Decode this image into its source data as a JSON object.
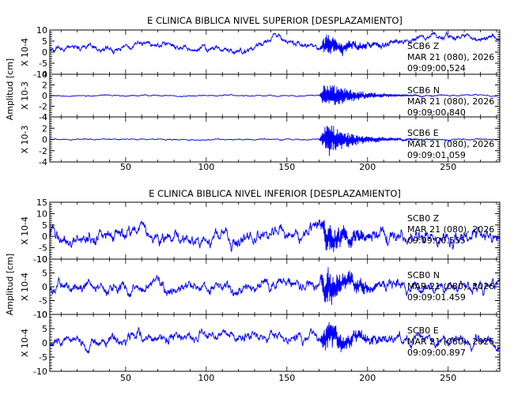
{
  "chart_data": [
    {
      "type": "line",
      "title": "E CLINICA BIBLICA NIVEL SUPERIOR [DESPLAZAMIENTO]",
      "ylabel": "Amplitud [cm]",
      "xlim": [
        3,
        282
      ],
      "xticks": [
        50,
        100,
        150,
        200,
        250
      ],
      "color": "#0000ff",
      "event_window": [
        172,
        212
      ],
      "series": [
        {
          "name": "SCB6 Z",
          "date": "MAR 21 (080), 2026",
          "time": "09:09:00.524",
          "scale_label": "X 10-4",
          "ylim": [
            -10,
            10
          ],
          "yticks": [
            -10,
            -5,
            0,
            5,
            10
          ],
          "baseline_amp": 2.2,
          "event_amp": 4.5,
          "seed": 11,
          "anchors": [
            [
              3,
              1
            ],
            [
              20,
              3
            ],
            [
              45,
              1
            ],
            [
              65,
              4
            ],
            [
              85,
              2
            ],
            [
              110,
              1
            ],
            [
              125,
              0
            ],
            [
              138,
              5
            ],
            [
              142,
              9
            ],
            [
              150,
              5
            ],
            [
              170,
              2
            ],
            [
              200,
              3
            ],
            [
              228,
              6
            ],
            [
              260,
              7
            ],
            [
              282,
              5
            ]
          ]
        },
        {
          "name": "SCB6 N",
          "date": "MAR 21 (080), 2026",
          "time": "09:09:00.840",
          "scale_label": "X 10-3",
          "ylim": [
            -4,
            4
          ],
          "yticks": [
            -4,
            -2,
            0,
            2,
            4
          ],
          "baseline_amp": 0.18,
          "event_amp": 2.8,
          "seed": 23,
          "anchors": [
            [
              3,
              0
            ],
            [
              282,
              0
            ]
          ]
        },
        {
          "name": "SCB6 E",
          "date": "MAR 21 (080), 2026",
          "time": "09:09:01.059",
          "scale_label": "X 10-3",
          "ylim": [
            -4,
            4
          ],
          "yticks": [
            -4,
            -2,
            0,
            2,
            4
          ],
          "baseline_amp": 0.18,
          "event_amp": 3.0,
          "seed": 37,
          "anchors": [
            [
              3,
              0
            ],
            [
              282,
              0
            ]
          ]
        }
      ]
    },
    {
      "type": "line",
      "title": "E CLINICA BIBLICA NIVEL INFERIOR [DESPLAZAMIENTO]",
      "ylabel": "Amplitud [cm]",
      "xlim": [
        3,
        282
      ],
      "xticks": [
        50,
        100,
        150,
        200,
        250
      ],
      "color": "#0000ff",
      "event_window": [
        172,
        212
      ],
      "series": [
        {
          "name": "SCB0 Z",
          "date": "MAR 21 (080), 2026",
          "time": "09:09:00.555",
          "scale_label": "X 10-4",
          "ylim": [
            -10,
            15
          ],
          "yticks": [
            -10,
            -5,
            0,
            5,
            10,
            15
          ],
          "baseline_amp": 5.0,
          "event_amp": 6.0,
          "seed": 53,
          "anchors": [
            [
              3,
              0
            ],
            [
              282,
              0
            ]
          ]
        },
        {
          "name": "SCB0 N",
          "date": "MAR 21 (080), 2026",
          "time": "09:09:01.459",
          "scale_label": "X 10-4",
          "ylim": [
            -10,
            10
          ],
          "yticks": [
            -10,
            -5,
            0,
            5,
            10
          ],
          "baseline_amp": 3.5,
          "event_amp": 6.5,
          "seed": 71,
          "anchors": [
            [
              3,
              0
            ],
            [
              282,
              0
            ]
          ]
        },
        {
          "name": "SCB0 E",
          "date": "MAR 21 (080), 2026",
          "time": "09:09:00.897",
          "scale_label": "X 10-4",
          "ylim": [
            -10,
            10
          ],
          "yticks": [
            -10,
            -5,
            0,
            5,
            10
          ],
          "baseline_amp": 3.2,
          "event_amp": 5.0,
          "seed": 97,
          "anchors": [
            [
              3,
              0
            ],
            [
              60,
              2
            ],
            [
              100,
              3
            ],
            [
              140,
              2
            ],
            [
              160,
              3
            ],
            [
              282,
              0
            ]
          ]
        }
      ]
    }
  ]
}
